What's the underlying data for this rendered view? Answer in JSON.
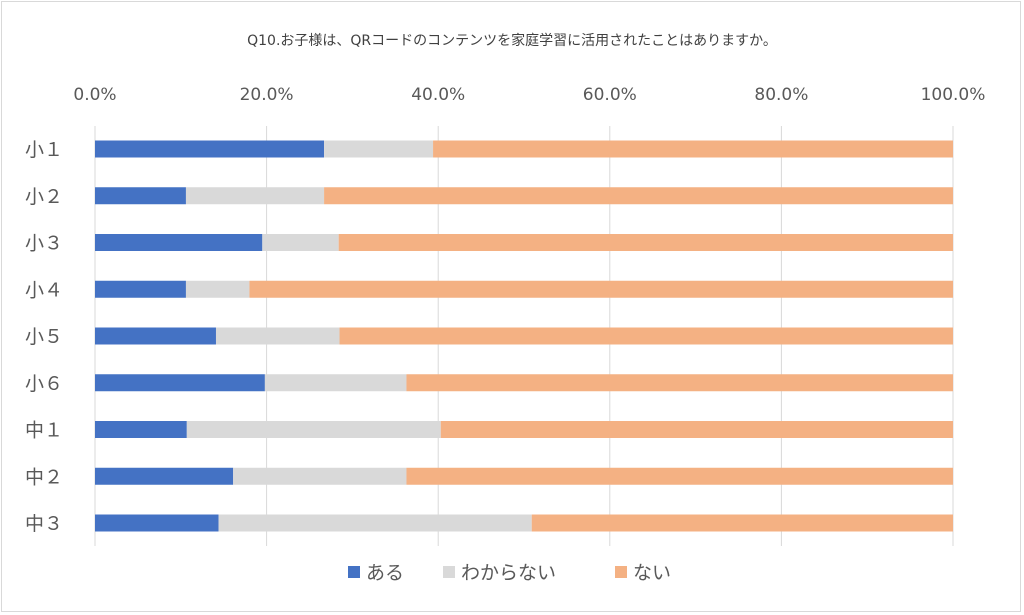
{
  "chart_data": {
    "type": "bar",
    "orientation": "horizontal",
    "stacked": true,
    "title": "Q10.お子様は、QRコードのコンテンツを家庭学習に活用されたことはありますか。",
    "categories": [
      "小１",
      "小２",
      "小３",
      "小４",
      "小５",
      "小６",
      "中１",
      "中２",
      "中３"
    ],
    "series": [
      {
        "name": "ある",
        "color": "#4472c4",
        "values": [
          26.7,
          10.6,
          19.5,
          10.6,
          14.1,
          19.8,
          10.7,
          16.1,
          14.4
        ]
      },
      {
        "name": "わからない",
        "color": "#d9d9d9",
        "values": [
          12.7,
          16.1,
          8.9,
          7.4,
          14.4,
          16.5,
          29.6,
          20.2,
          36.5
        ]
      },
      {
        "name": "ない",
        "color": "#f4b183",
        "values": [
          60.6,
          73.3,
          71.6,
          82.0,
          71.5,
          63.7,
          59.7,
          63.7,
          49.1
        ]
      }
    ],
    "xlim": [
      0,
      100
    ],
    "xticks": [
      "0.0%",
      "20.0%",
      "40.0%",
      "60.0%",
      "80.0%",
      "100.0%"
    ],
    "grid": true,
    "legend_position": "bottom"
  }
}
